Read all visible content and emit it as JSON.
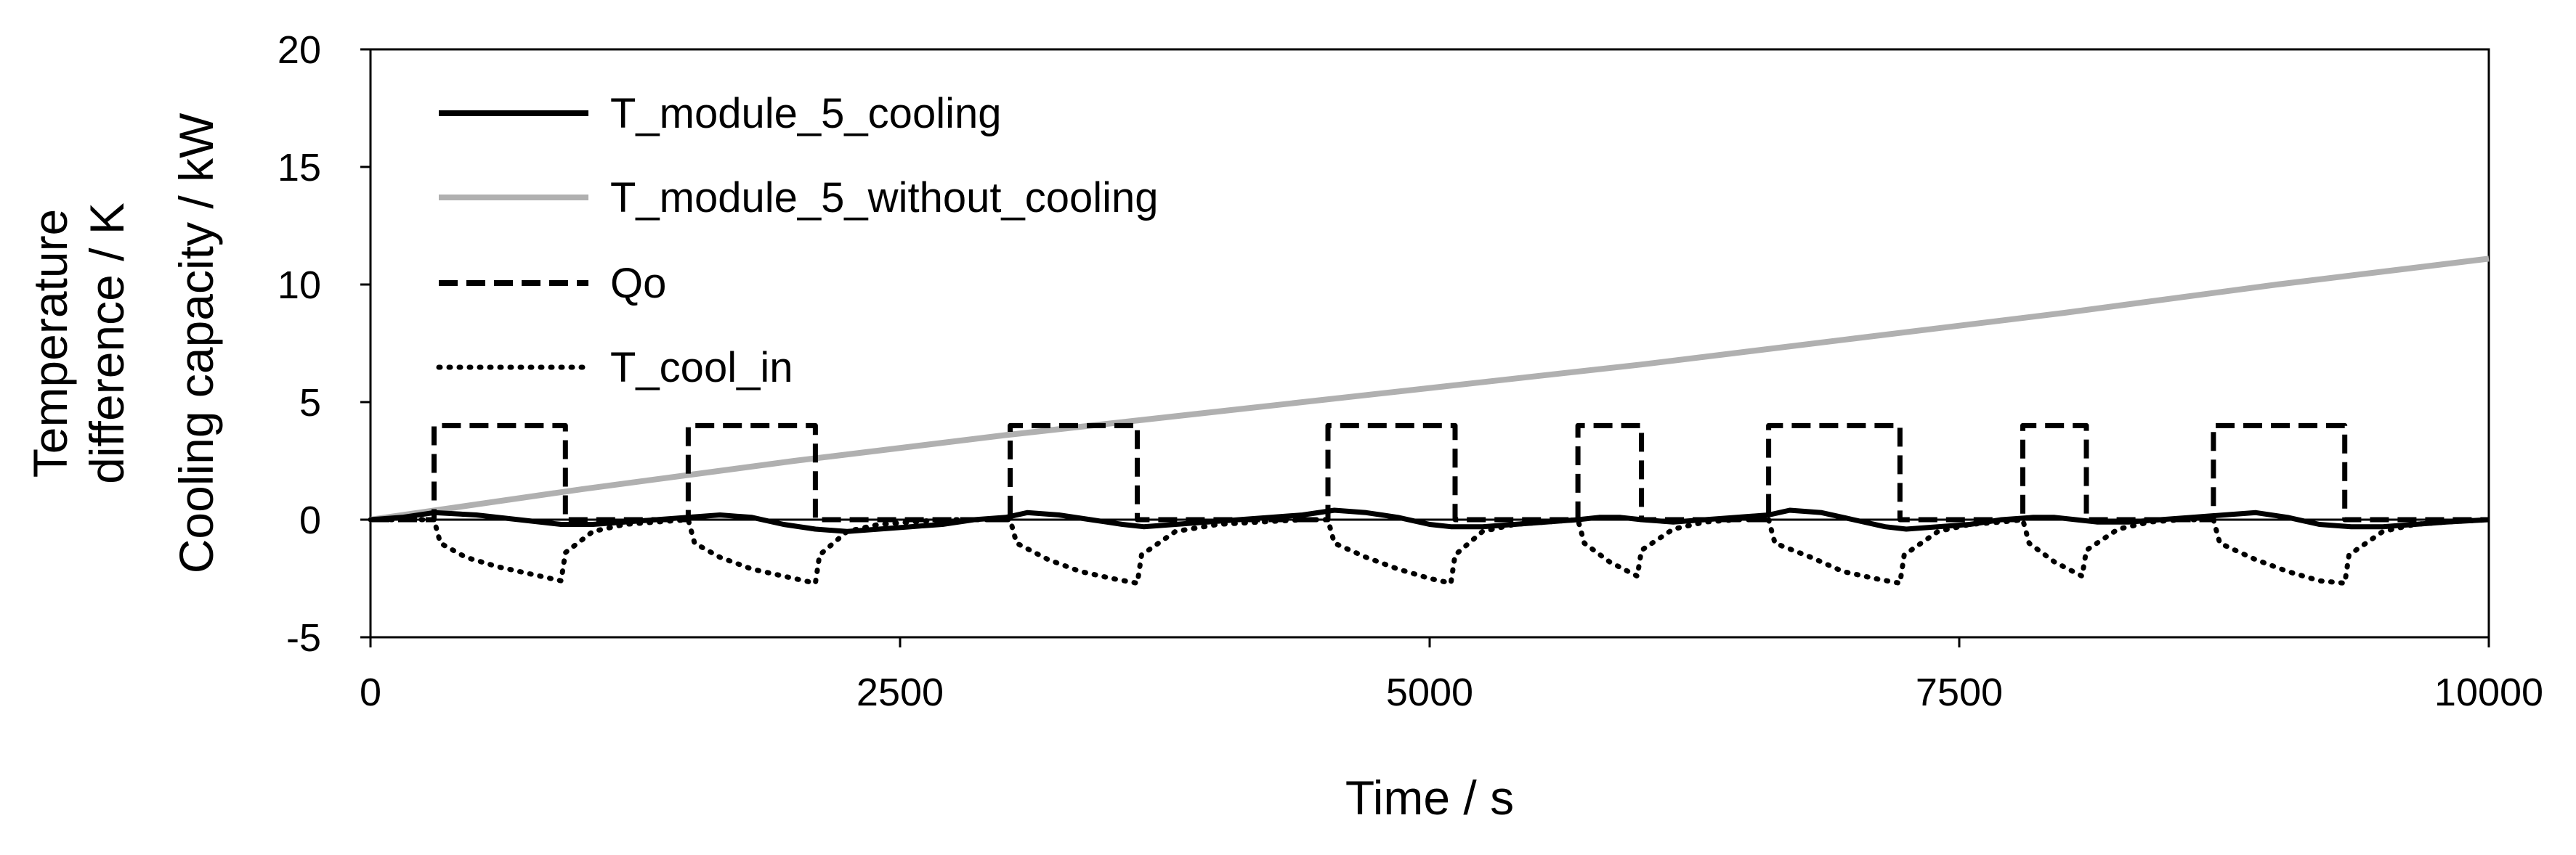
{
  "chart_data": {
    "type": "line",
    "xlabel": "Time / s",
    "ylabel_lines": [
      "Temperature",
      "difference / K",
      "Cooling capacity / kW"
    ],
    "xlim": [
      0,
      10000
    ],
    "ylim": [
      -5,
      20
    ],
    "xticks": [
      0,
      2500,
      5000,
      7500,
      10000
    ],
    "yticks": [
      20,
      15,
      10,
      5,
      0,
      -5
    ],
    "grid": false,
    "legend_position": "top-left",
    "series": [
      {
        "name": "T_module_5_cooling",
        "color": "#000000",
        "style": "solid",
        "x": [
          0,
          150,
          300,
          500,
          700,
          900,
          1050,
          1200,
          1350,
          1500,
          1650,
          1800,
          1950,
          2100,
          2250,
          2400,
          2550,
          2700,
          2850,
          3000,
          3100,
          3250,
          3400,
          3550,
          3650,
          3800,
          3950,
          4100,
          4250,
          4400,
          4550,
          4700,
          4850,
          5000,
          5100,
          5250,
          5400,
          5550,
          5700,
          5800,
          5900,
          6000,
          6150,
          6300,
          6450,
          6600,
          6700,
          6850,
          7000,
          7150,
          7250,
          7400,
          7550,
          7700,
          7850,
          7950,
          8050,
          8150,
          8300,
          8450,
          8600,
          8750,
          8900,
          9050,
          9200,
          9350,
          9500,
          9650,
          9800,
          10000
        ],
        "values": [
          0.0,
          0.1,
          0.3,
          0.2,
          0.0,
          -0.2,
          -0.2,
          -0.1,
          0.0,
          0.1,
          0.2,
          0.1,
          -0.2,
          -0.4,
          -0.5,
          -0.4,
          -0.3,
          -0.2,
          0.0,
          0.1,
          0.3,
          0.2,
          0.0,
          -0.2,
          -0.3,
          -0.2,
          -0.1,
          0.0,
          0.1,
          0.2,
          0.4,
          0.3,
          0.1,
          -0.2,
          -0.3,
          -0.3,
          -0.2,
          -0.1,
          0.0,
          0.1,
          0.1,
          0.0,
          -0.1,
          0.0,
          0.1,
          0.2,
          0.4,
          0.3,
          0.0,
          -0.3,
          -0.4,
          -0.3,
          -0.2,
          0.0,
          0.1,
          0.1,
          0.0,
          -0.1,
          -0.1,
          0.0,
          0.1,
          0.2,
          0.3,
          0.1,
          -0.2,
          -0.3,
          -0.3,
          -0.2,
          -0.1,
          0.0
        ]
      },
      {
        "name": "T_module_5_without_cooling",
        "color": "#b0b0b0",
        "style": "solid",
        "x": [
          0,
          1000,
          2000,
          3000,
          4000,
          5000,
          6000,
          7000,
          8000,
          9000,
          10000
        ],
        "values": [
          0.0,
          1.3,
          2.5,
          3.6,
          4.6,
          5.6,
          6.6,
          7.7,
          8.8,
          10.0,
          11.1
        ]
      },
      {
        "name": "Qo",
        "color": "#000000",
        "style": "dashed",
        "x": [
          0,
          300,
          300,
          920,
          920,
          1500,
          1500,
          2100,
          2100,
          3020,
          3020,
          3620,
          3620,
          4520,
          4520,
          5120,
          5120,
          5700,
          5700,
          6000,
          6000,
          6600,
          6600,
          7220,
          7220,
          7800,
          7800,
          8100,
          8100,
          8700,
          8700,
          9320,
          9320,
          10000
        ],
        "values": [
          0,
          0,
          4,
          4,
          0,
          0,
          4,
          4,
          0,
          0,
          4,
          4,
          0,
          0,
          4,
          4,
          0,
          0,
          4,
          4,
          0,
          0,
          4,
          4,
          0,
          0,
          4,
          4,
          0,
          0,
          4,
          4,
          0,
          0
        ]
      },
      {
        "name": "T_cool_in",
        "color": "#000000",
        "style": "dotted",
        "x": [
          0,
          300,
          330,
          450,
          600,
          750,
          900,
          920,
          1050,
          1200,
          1350,
          1500,
          1530,
          1650,
          1800,
          1950,
          2100,
          2120,
          2250,
          2400,
          2550,
          2700,
          2850,
          3020,
          3050,
          3200,
          3350,
          3500,
          3620,
          3640,
          3800,
          4000,
          4200,
          4400,
          4520,
          4550,
          4700,
          4850,
          5000,
          5100,
          5120,
          5250,
          5400,
          5550,
          5700,
          5730,
          5850,
          5980,
          6000,
          6150,
          6300,
          6450,
          6600,
          6630,
          6800,
          6950,
          7100,
          7220,
          7240,
          7400,
          7550,
          7700,
          7800,
          7830,
          7950,
          8080,
          8100,
          8250,
          8400,
          8550,
          8700,
          8730,
          8900,
          9050,
          9200,
          9320,
          9340,
          9500,
          9650,
          9800,
          10000
        ],
        "values": [
          0.0,
          0.0,
          -1.0,
          -1.6,
          -2.0,
          -2.3,
          -2.6,
          -1.4,
          -0.5,
          -0.2,
          -0.1,
          0.0,
          -1.0,
          -1.6,
          -2.1,
          -2.4,
          -2.7,
          -1.5,
          -0.5,
          -0.2,
          -0.1,
          0.0,
          0.0,
          0.0,
          -1.0,
          -1.7,
          -2.2,
          -2.5,
          -2.7,
          -1.5,
          -0.5,
          -0.2,
          -0.1,
          0.0,
          0.0,
          -1.0,
          -1.6,
          -2.1,
          -2.5,
          -2.7,
          -1.5,
          -0.5,
          -0.2,
          -0.1,
          0.0,
          -1.0,
          -1.8,
          -2.4,
          -1.3,
          -0.4,
          -0.1,
          0.0,
          0.0,
          -1.0,
          -1.6,
          -2.2,
          -2.5,
          -2.7,
          -1.5,
          -0.5,
          -0.2,
          -0.1,
          0.0,
          -1.0,
          -1.8,
          -2.4,
          -1.3,
          -0.4,
          -0.1,
          0.0,
          0.0,
          -1.0,
          -1.7,
          -2.2,
          -2.6,
          -2.7,
          -1.5,
          -0.5,
          -0.2,
          -0.1,
          0.0
        ]
      }
    ]
  }
}
